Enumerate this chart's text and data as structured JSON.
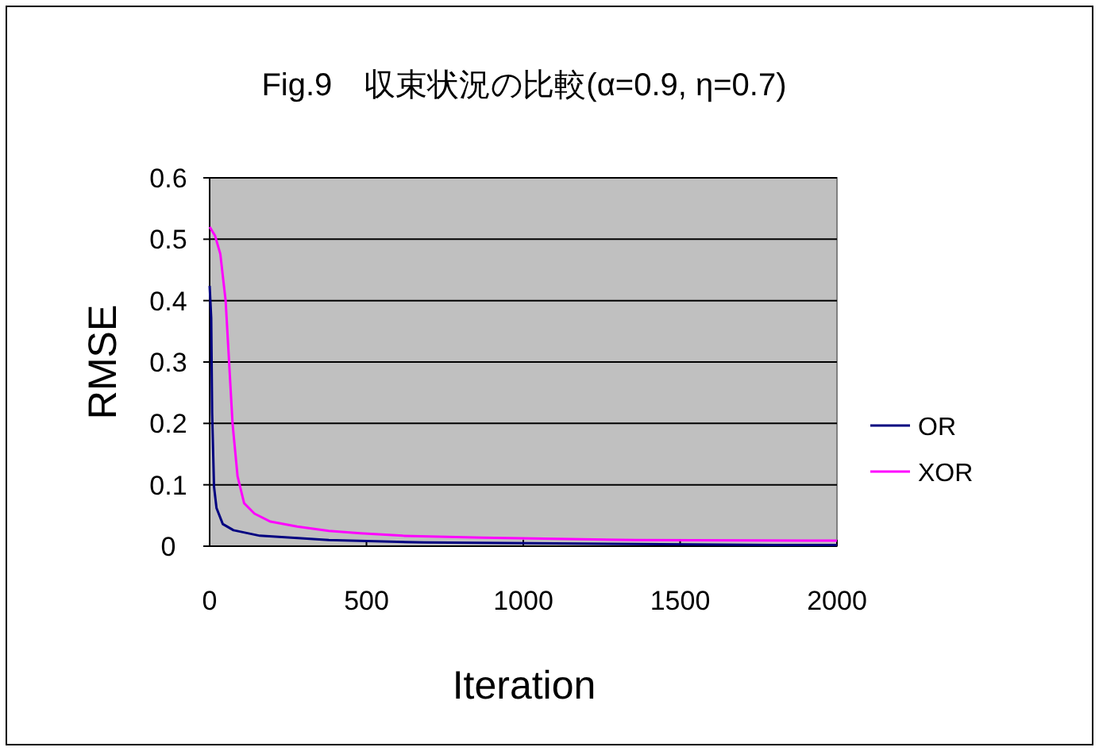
{
  "chart_data": {
    "type": "line",
    "title": "Fig.9　収束状況の比較(α=0.9, η=0.7)",
    "xlabel": "Iteration",
    "ylabel": "RMSE",
    "xlim": [
      0,
      2000
    ],
    "xticks": [
      0,
      500,
      1000,
      1500,
      2000
    ],
    "ylim": [
      0,
      0.6
    ],
    "yticks": [
      0,
      0.1,
      0.2,
      0.3,
      0.4,
      0.5,
      0.6
    ],
    "grid": "y",
    "legend": "right",
    "marker": "none",
    "line_style": "solid",
    "series": [
      {
        "name": "OR",
        "color": "#000080",
        "x": [
          0,
          5,
          8,
          14,
          22,
          42,
          76,
          160,
          380,
          684,
          1798,
          2000
        ],
        "values": [
          0.424,
          0.372,
          0.217,
          0.097,
          0.062,
          0.036,
          0.026,
          0.017,
          0.01,
          0.006,
          0.002,
          0.002
        ]
      },
      {
        "name": "XOR",
        "color": "#ff00ff",
        "x": [
          0,
          17,
          34,
          51,
          62,
          73,
          89,
          110,
          143,
          194,
          279,
          380,
          481,
          616,
          869,
          1359,
          2000
        ],
        "values": [
          0.52,
          0.506,
          0.476,
          0.4,
          0.3,
          0.2,
          0.114,
          0.07,
          0.053,
          0.04,
          0.032,
          0.025,
          0.021,
          0.017,
          0.014,
          0.01,
          0.009
        ]
      }
    ]
  }
}
